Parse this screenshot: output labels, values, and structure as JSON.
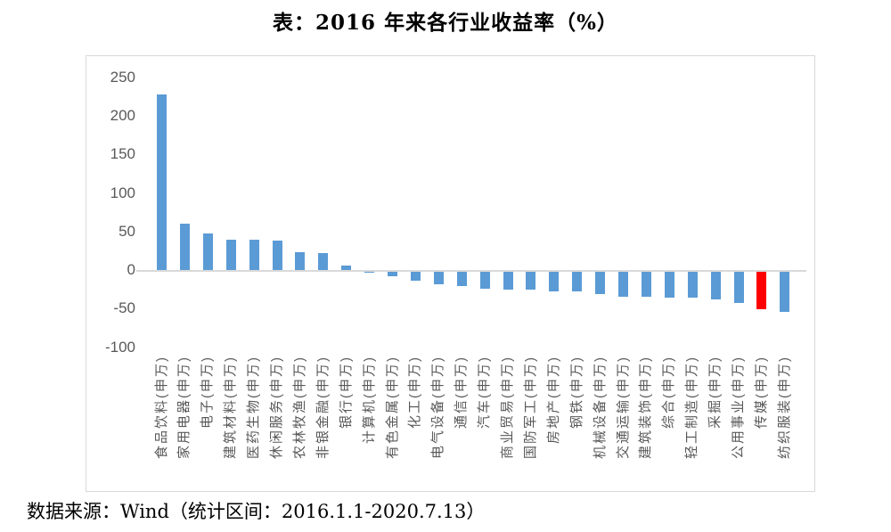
{
  "title": "表：2016 年来各行业收益率（%）",
  "footer": "数据来源：Wind（统计区间：2016.1.1-2020.7.13）",
  "chart_data": {
    "type": "bar",
    "title": "表：2016 年来各行业收益率（%）",
    "categories": [
      "食品饮料(申万)",
      "家用电器(申万)",
      "电子(申万)",
      "建筑材料(申万)",
      "医药生物(申万)",
      "休闲服务(申万)",
      "农林牧渔(申万)",
      "非银金融(申万)",
      "银行(申万)",
      "计算机(申万)",
      "有色金属(申万)",
      "化工(申万)",
      "电气设备(申万)",
      "通信(申万)",
      "汽车(申万)",
      "商业贸易(申万)",
      "国防军工(申万)",
      "房地产(申万)",
      "钢铁(申万)",
      "机械设备(申万)",
      "交通运输(申万)",
      "建筑装饰(申万)",
      "综合(申万)",
      "轻工制造(申万)",
      "采掘(申万)",
      "公用事业(申万)",
      "传媒(申万)",
      "纺织服装(申万)"
    ],
    "values": [
      228,
      60,
      47,
      39,
      39,
      38,
      23,
      22,
      6,
      -1,
      -6,
      -12,
      -16,
      -19,
      -22,
      -23,
      -23,
      -25,
      -25,
      -29,
      -32,
      -32,
      -33,
      -33,
      -36,
      -41,
      -49,
      -52
    ],
    "bar_color": "#5B9BD5",
    "highlight": {
      "index": 26,
      "category": "传媒(申万)",
      "color": "#FF0000"
    },
    "y_ticks": [
      250,
      200,
      150,
      100,
      50,
      0,
      -50,
      -100
    ],
    "ylim": [
      -100,
      250
    ],
    "xlabel": "",
    "ylabel": "",
    "grid": false,
    "legend": false,
    "axis_label_color": "#595959",
    "source_note": "数据来源：Wind（统计区间：2016.1.1-2020.7.13）"
  }
}
